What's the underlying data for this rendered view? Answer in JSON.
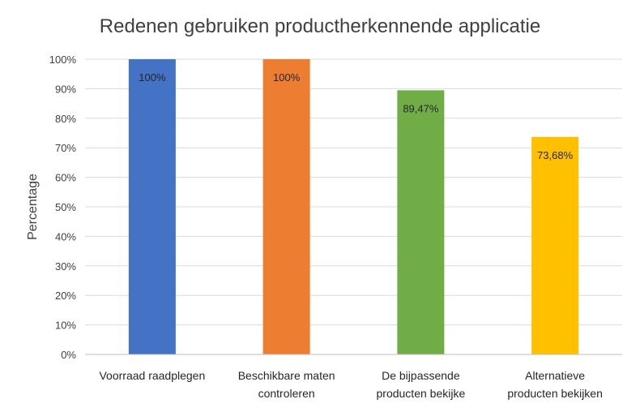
{
  "chart_data": {
    "type": "bar",
    "title": "Redenen gebruiken productherkennende applicatie",
    "ylabel": "Percentage",
    "xlabel": "",
    "ylim": [
      0,
      100
    ],
    "yticks": [
      "0%",
      "10%",
      "20%",
      "30%",
      "40%",
      "50%",
      "60%",
      "70%",
      "80%",
      "90%",
      "100%"
    ],
    "grid": true,
    "categories": [
      [
        "Voorraad raadplegen"
      ],
      [
        "Beschikbare maten",
        "controleren"
      ],
      [
        "De bijpassende",
        "producten bekijke"
      ],
      [
        "Alternatieve",
        "producten bekijken"
      ]
    ],
    "values": [
      100,
      100,
      89.47,
      73.68
    ],
    "data_labels": [
      "100%",
      "100%",
      "89,47%",
      "73,68%"
    ],
    "colors": [
      "#4472c4",
      "#ed7d31",
      "#70ad47",
      "#ffc000"
    ]
  }
}
